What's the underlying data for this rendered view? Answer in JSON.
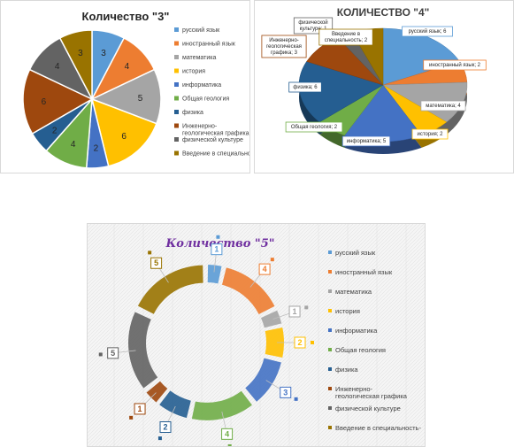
{
  "colors": [
    "#5b9bd5",
    "#ed7d31",
    "#a5a5a5",
    "#ffc000",
    "#4472c4",
    "#70ad47",
    "#255e91",
    "#9e480e",
    "#636363",
    "#997300"
  ],
  "chart_data": [
    {
      "type": "pie",
      "title": "Количество \"3\"",
      "categories": [
        "русский язык",
        "иностранный язык",
        "математика",
        "история",
        "информатика",
        "Общая геология",
        "физика",
        "Инженерно-геологическая графика",
        "физической культуре",
        "Введение в специальность"
      ],
      "values": [
        3,
        4,
        5,
        6,
        2,
        4,
        2,
        6,
        4,
        3
      ],
      "legend": "right"
    },
    {
      "type": "pie",
      "title": "КОЛИЧЕСТВО \"4\"",
      "categories": [
        "русский язык",
        "иностранный язык",
        "математика",
        "история",
        "информатика",
        "Общая геология",
        "физика",
        "Инженерно-геологическая графика",
        "физической культуре",
        "Введение в специальность"
      ],
      "values": [
        6,
        2,
        4,
        2,
        5,
        2,
        6,
        3,
        1,
        2
      ],
      "data_labels": [
        "русский язык; 6",
        "иностранный язык; 2",
        "математика; 4",
        "история; 2",
        "информатика; 5",
        "Общая геология; 2",
        "физика; 6",
        "Инженерно-геологическая графика; 3",
        "физической культуре; 1",
        "Введение в специальность; 2"
      ],
      "legend": "none"
    },
    {
      "type": "pie",
      "title": "Количество \"5\"",
      "categories": [
        "русский язык",
        "иностранный язык",
        "математика",
        "история",
        "информатика",
        "Общая геология",
        "физика",
        "Инженерно-геологическая графика",
        "физической культуре",
        "Введение в специальность"
      ],
      "values": [
        1,
        4,
        1,
        2,
        3,
        4,
        2,
        1,
        5,
        5
      ],
      "legend": "right"
    }
  ]
}
